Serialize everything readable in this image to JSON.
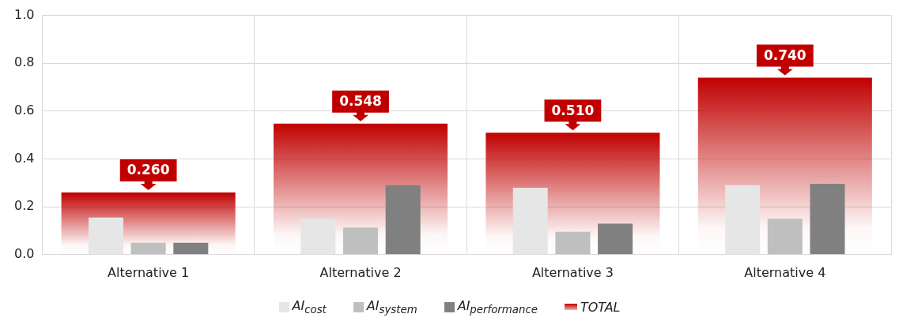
{
  "chart_data": {
    "type": "bar",
    "categories": [
      "Alternative 1",
      "Alternative 2",
      "Alternative 3",
      "Alternative 4"
    ],
    "series": [
      {
        "name": "AI$_{cost}$",
        "color": "#e6e6e6",
        "values": [
          0.155,
          0.15,
          0.28,
          0.29
        ]
      },
      {
        "name": "AI$_{system}$",
        "color": "#bfbfbf",
        "values": [
          0.05,
          0.113,
          0.096,
          0.15
        ]
      },
      {
        "name": "AI$_{performance}$",
        "color": "#808080",
        "values": [
          0.05,
          0.29,
          0.13,
          0.296
        ]
      },
      {
        "name": "TOTAL",
        "color": "#c00000",
        "values": [
          0.26,
          0.548,
          0.51,
          0.74
        ],
        "value_labels": [
          "0.260",
          "0.548",
          "0.510",
          "0.740"
        ]
      }
    ],
    "ylim": [
      0,
      1
    ],
    "yticks": [
      {
        "value": 0,
        "label": "0.0"
      },
      {
        "value": 0.2,
        "label": "0.2"
      },
      {
        "value": 0.4,
        "label": "0.4"
      },
      {
        "value": 0.6,
        "label": "0.6"
      },
      {
        "value": 0.8,
        "label": "0.8"
      },
      {
        "value": 1,
        "label": "1.0"
      }
    ],
    "grid": true,
    "legend": "bottom"
  }
}
